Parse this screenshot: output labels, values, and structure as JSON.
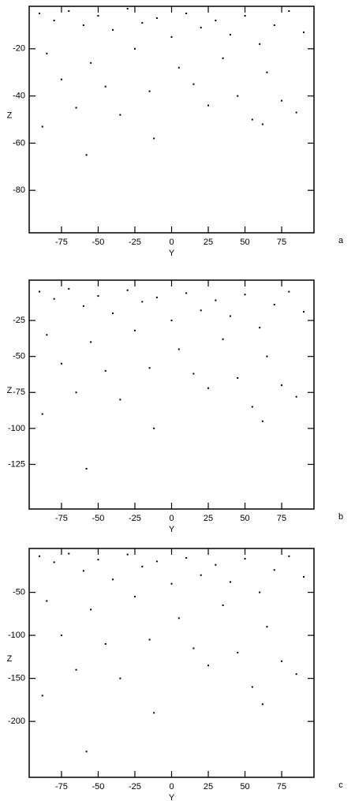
{
  "chart_data": [
    {
      "type": "scatter",
      "panel_label": "a",
      "xlabel": "Y",
      "ylabel": "Z",
      "color": "#000000",
      "xlim": [
        -97,
        97
      ],
      "ylim": [
        -98,
        -2
      ],
      "xticks": [
        -75,
        -50,
        -25,
        0,
        25,
        50,
        75
      ],
      "yticks": [
        -20,
        -40,
        -60,
        -80
      ],
      "x": [
        -90,
        -80,
        -70,
        -60,
        -50,
        -40,
        -30,
        -20,
        -10,
        0,
        10,
        20,
        30,
        40,
        50,
        60,
        70,
        80,
        90,
        -85,
        -55,
        -25,
        5,
        35,
        65,
        -75,
        -45,
        -15,
        15,
        45,
        75,
        -65,
        -35,
        25,
        55,
        85,
        -88,
        -12,
        62,
        -58
      ],
      "y": [
        -5,
        -8,
        -4,
        -10,
        -6,
        -12,
        -3,
        -9,
        -7,
        -15,
        -5,
        -11,
        -8,
        -14,
        -6,
        -18,
        -10,
        -4,
        -13,
        -22,
        -26,
        -20,
        -28,
        -24,
        -30,
        -33,
        -36,
        -38,
        -35,
        -40,
        -42,
        -45,
        -48,
        -44,
        -50,
        -47,
        -53,
        -58,
        -52,
        -65
      ]
    },
    {
      "type": "scatter",
      "panel_label": "b",
      "xlabel": "Y",
      "ylabel": "Z",
      "color": "#000000",
      "xlim": [
        -97,
        97
      ],
      "ylim": [
        -156,
        3
      ],
      "xticks": [
        -75,
        -50,
        -25,
        0,
        25,
        50,
        75
      ],
      "yticks": [
        -25,
        -50,
        -75,
        -100,
        -125
      ],
      "x": [
        -90,
        -80,
        -70,
        -60,
        -50,
        -40,
        -30,
        -20,
        -10,
        0,
        10,
        20,
        30,
        40,
        50,
        60,
        70,
        80,
        90,
        -85,
        -55,
        -25,
        5,
        35,
        65,
        -75,
        -45,
        -15,
        15,
        45,
        75,
        -65,
        -35,
        25,
        55,
        85,
        -88,
        -12,
        62,
        -58
      ],
      "y": [
        -5,
        -10,
        -3,
        -15,
        -8,
        -20,
        -4,
        -12,
        -9,
        -25,
        -6,
        -18,
        -11,
        -22,
        -7,
        -30,
        -14,
        -5,
        -19,
        -35,
        -40,
        -32,
        -45,
        -38,
        -50,
        -55,
        -60,
        -58,
        -62,
        -65,
        -70,
        -75,
        -80,
        -72,
        -85,
        -78,
        -90,
        -100,
        -95,
        -128
      ]
    },
    {
      "type": "scatter",
      "panel_label": "c",
      "xlabel": "Y",
      "ylabel": "Z",
      "color": "#000000",
      "xlim": [
        -97,
        97
      ],
      "ylim": [
        -265,
        1
      ],
      "xticks": [
        -75,
        -50,
        -25,
        0,
        25,
        50,
        75
      ],
      "yticks": [
        -50,
        -100,
        -150,
        -200
      ],
      "x": [
        -90,
        -80,
        -70,
        -60,
        -50,
        -40,
        -30,
        -20,
        -10,
        0,
        10,
        20,
        30,
        40,
        50,
        60,
        70,
        80,
        90,
        -85,
        -55,
        -25,
        5,
        35,
        65,
        -75,
        -45,
        -15,
        15,
        45,
        75,
        -65,
        -35,
        25,
        55,
        85,
        -88,
        -12,
        62,
        -58
      ],
      "y": [
        -8,
        -15,
        -5,
        -25,
        -12,
        -35,
        -6,
        -20,
        -14,
        -40,
        -10,
        -30,
        -18,
        -38,
        -11,
        -50,
        -24,
        -8,
        -32,
        -60,
        -70,
        -55,
        -80,
        -65,
        -90,
        -100,
        -110,
        -105,
        -115,
        -120,
        -130,
        -140,
        -150,
        -135,
        -160,
        -145,
        -170,
        -190,
        -180,
        -235
      ]
    }
  ]
}
